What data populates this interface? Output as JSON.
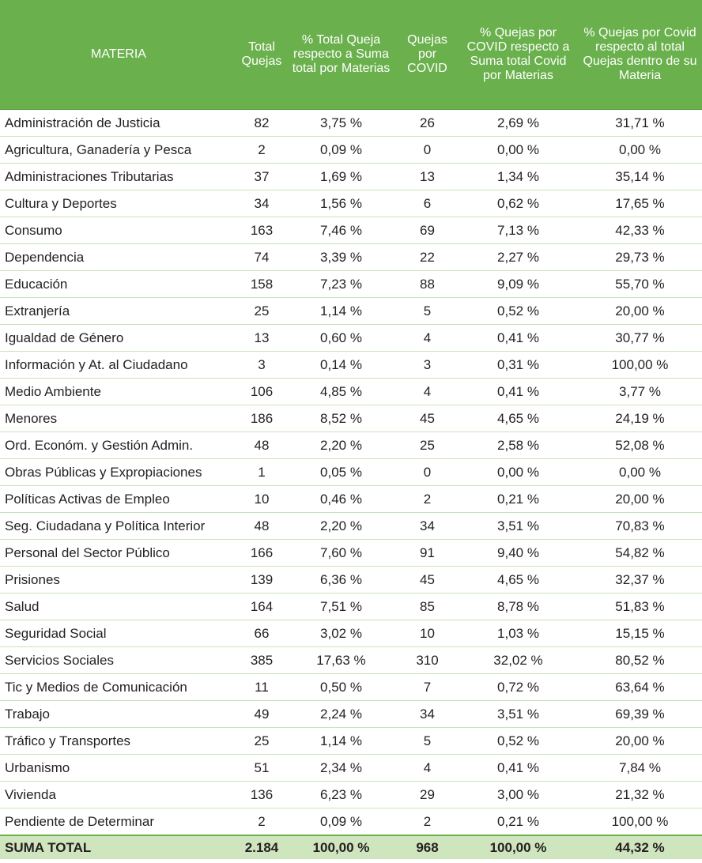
{
  "headers": {
    "materia": "MATERIA",
    "total": "Total Quejas",
    "pct_total": "% Total Queja respecto a Suma total por Materias",
    "covid": "Quejas por COVID",
    "pct_covid": "% Quejas por COVID respecto a Suma total Covid por Materias",
    "pct_dentro": "% Quejas por Covid respecto al total Quejas dentro de su Materia"
  },
  "rows": [
    {
      "materia": "Administración de Justicia",
      "total": "82",
      "pct_total": "3,75 %",
      "covid": "26",
      "pct_covid": "2,69 %",
      "pct_dentro": "31,71 %"
    },
    {
      "materia": "Agricultura, Ganadería y Pesca",
      "total": "2",
      "pct_total": "0,09 %",
      "covid": "0",
      "pct_covid": "0,00 %",
      "pct_dentro": "0,00 %"
    },
    {
      "materia": "Administraciones Tributarias",
      "total": "37",
      "pct_total": "1,69 %",
      "covid": "13",
      "pct_covid": "1,34 %",
      "pct_dentro": "35,14 %"
    },
    {
      "materia": "Cultura y Deportes",
      "total": "34",
      "pct_total": "1,56 %",
      "covid": "6",
      "pct_covid": "0,62 %",
      "pct_dentro": "17,65 %"
    },
    {
      "materia": "Consumo",
      "total": "163",
      "pct_total": "7,46 %",
      "covid": "69",
      "pct_covid": "7,13 %",
      "pct_dentro": "42,33 %"
    },
    {
      "materia": "Dependencia",
      "total": "74",
      "pct_total": "3,39 %",
      "covid": "22",
      "pct_covid": "2,27 %",
      "pct_dentro": "29,73 %"
    },
    {
      "materia": "Educación",
      "total": "158",
      "pct_total": "7,23 %",
      "covid": "88",
      "pct_covid": "9,09 %",
      "pct_dentro": "55,70 %"
    },
    {
      "materia": "Extranjería",
      "total": "25",
      "pct_total": "1,14 %",
      "covid": "5",
      "pct_covid": "0,52 %",
      "pct_dentro": "20,00 %"
    },
    {
      "materia": "Igualdad de Género",
      "total": "13",
      "pct_total": "0,60 %",
      "covid": "4",
      "pct_covid": "0,41 %",
      "pct_dentro": "30,77 %"
    },
    {
      "materia": "Información y At. al Ciudadano",
      "total": "3",
      "pct_total": "0,14 %",
      "covid": "3",
      "pct_covid": "0,31 %",
      "pct_dentro": "100,00 %"
    },
    {
      "materia": "Medio Ambiente",
      "total": "106",
      "pct_total": "4,85 %",
      "covid": "4",
      "pct_covid": "0,41 %",
      "pct_dentro": "3,77 %"
    },
    {
      "materia": "Menores",
      "total": "186",
      "pct_total": "8,52 %",
      "covid": "45",
      "pct_covid": "4,65 %",
      "pct_dentro": "24,19 %"
    },
    {
      "materia": "Ord. Económ. y Gestión Admin.",
      "total": "48",
      "pct_total": "2,20 %",
      "covid": "25",
      "pct_covid": "2,58 %",
      "pct_dentro": "52,08 %"
    },
    {
      "materia": "Obras Públicas y Expropiaciones",
      "total": "1",
      "pct_total": "0,05 %",
      "covid": "0",
      "pct_covid": "0,00 %",
      "pct_dentro": "0,00 %"
    },
    {
      "materia": "Políticas Activas de Empleo",
      "total": "10",
      "pct_total": "0,46 %",
      "covid": "2",
      "pct_covid": "0,21 %",
      "pct_dentro": "20,00 %"
    },
    {
      "materia": "Seg. Ciudadana y Política Interior",
      "total": "48",
      "pct_total": "2,20 %",
      "covid": "34",
      "pct_covid": "3,51 %",
      "pct_dentro": "70,83 %"
    },
    {
      "materia": "Personal del Sector Público",
      "total": "166",
      "pct_total": "7,60 %",
      "covid": "91",
      "pct_covid": "9,40 %",
      "pct_dentro": "54,82 %"
    },
    {
      "materia": "Prisiones",
      "total": "139",
      "pct_total": "6,36 %",
      "covid": "45",
      "pct_covid": "4,65 %",
      "pct_dentro": "32,37 %"
    },
    {
      "materia": "Salud",
      "total": "164",
      "pct_total": "7,51 %",
      "covid": "85",
      "pct_covid": "8,78 %",
      "pct_dentro": "51,83 %"
    },
    {
      "materia": "Seguridad Social",
      "total": "66",
      "pct_total": "3,02 %",
      "covid": "10",
      "pct_covid": "1,03 %",
      "pct_dentro": "15,15 %"
    },
    {
      "materia": "Servicios Sociales",
      "total": "385",
      "pct_total": "17,63 %",
      "covid": "310",
      "pct_covid": "32,02 %",
      "pct_dentro": "80,52 %"
    },
    {
      "materia": "Tic y Medios de Comunicación",
      "total": "11",
      "pct_total": "0,50 %",
      "covid": "7",
      "pct_covid": "0,72 %",
      "pct_dentro": "63,64 %"
    },
    {
      "materia": "Trabajo",
      "total": "49",
      "pct_total": "2,24 %",
      "covid": "34",
      "pct_covid": "3,51 %",
      "pct_dentro": "69,39 %"
    },
    {
      "materia": "Tráfico y Transportes",
      "total": "25",
      "pct_total": "1,14 %",
      "covid": "5",
      "pct_covid": "0,52 %",
      "pct_dentro": "20,00 %"
    },
    {
      "materia": "Urbanismo",
      "total": "51",
      "pct_total": "2,34 %",
      "covid": "4",
      "pct_covid": "0,41 %",
      "pct_dentro": "7,84 %"
    },
    {
      "materia": "Vivienda",
      "total": "136",
      "pct_total": "6,23 %",
      "covid": "29",
      "pct_covid": "3,00 %",
      "pct_dentro": "21,32 %"
    },
    {
      "materia": "Pendiente de Determinar",
      "total": "2",
      "pct_total": "0,09 %",
      "covid": "2",
      "pct_covid": "0,21 %",
      "pct_dentro": "100,00 %"
    }
  ],
  "footer": {
    "materia": "SUMA TOTAL",
    "total": "2.184",
    "pct_total": "100,00 %",
    "covid": "968",
    "pct_covid": "100,00 %",
    "pct_dentro": "44,32 %"
  },
  "colors": {
    "header_bg": "#6ab04c",
    "footer_bg": "#cfe5be",
    "row_divider": "#c9e3b8"
  }
}
